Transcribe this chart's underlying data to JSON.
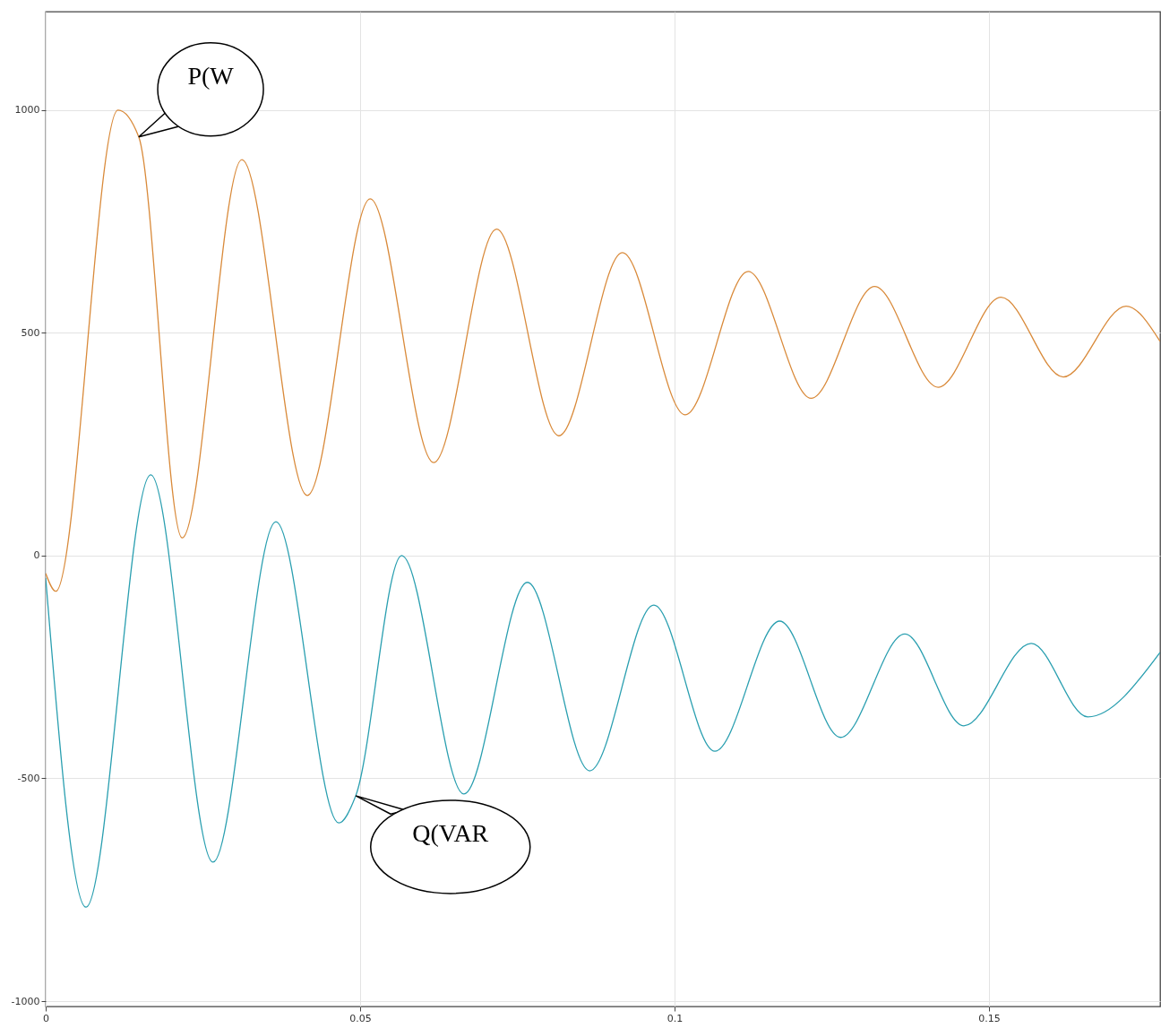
{
  "chart_data": {
    "type": "line",
    "xlim": [
      0,
      0.1772
    ],
    "ylim": [
      -1012,
      1221
    ],
    "xticks": [
      0,
      0.05,
      0.1,
      0.15
    ],
    "yticks": [
      -1000,
      -500,
      0,
      500,
      1000
    ],
    "grid": true,
    "series": [
      {
        "color": "#d98a3a",
        "x": [
          0,
          0.0016,
          0.0115,
          0.0148,
          0.0217,
          0.0312,
          0.0416,
          0.0516,
          0.0617,
          0.0717,
          0.0816,
          0.0917,
          0.1017,
          0.1117,
          0.1217,
          0.1318,
          0.1419,
          0.1519,
          0.1618,
          0.1718,
          0.1772
        ],
        "values": [
          -40,
          -80,
          1000,
          940,
          40,
          889,
          135,
          801,
          209,
          733,
          269,
          680,
          316,
          638,
          353,
          604,
          378,
          580,
          401,
          560,
          481
        ]
      },
      {
        "color": "#2a9fb0",
        "x": [
          0,
          0.0064,
          0.0167,
          0.0266,
          0.0366,
          0.0466,
          0.0493,
          0.0566,
          0.0665,
          0.0766,
          0.0865,
          0.0967,
          0.1064,
          0.1167,
          0.1264,
          0.1366,
          0.146,
          0.1567,
          0.1657,
          0.1772
        ],
        "values": [
          -50,
          -789,
          181,
          -688,
          76,
          -600,
          -539,
          0,
          -535,
          -60,
          -483,
          -111,
          -439,
          -147,
          -408,
          -176,
          -382,
          -197,
          -362,
          -217
        ]
      }
    ],
    "annotations": [
      {
        "text": "P(W",
        "x": 0.0148,
        "y": 940
      },
      {
        "text": "Q(VAR",
        "x": 0.0493,
        "y": -539
      }
    ]
  }
}
